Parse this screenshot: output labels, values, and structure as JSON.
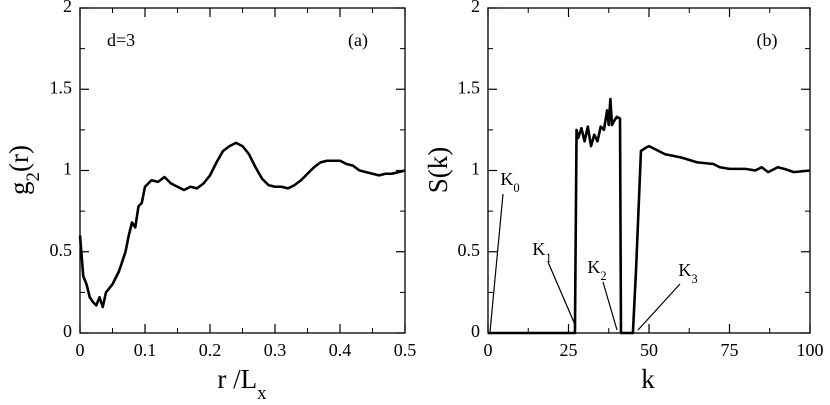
{
  "chart_data": [
    {
      "type": "line",
      "ylabel": {
        "text": "g",
        "sub": "2",
        "rest": "(r)"
      },
      "xlabel": {
        "text": "r /L",
        "sub": "x"
      },
      "annotations": [
        {
          "text": "d=3"
        },
        {
          "text": "(a)"
        }
      ],
      "xlim": [
        0,
        0.5
      ],
      "ylim": [
        0,
        2
      ],
      "xticks": [
        0,
        0.1,
        0.2,
        0.3,
        0.4,
        0.5
      ],
      "yticks": [
        0,
        0.5,
        1,
        1.5,
        2
      ],
      "color": "#000000",
      "x": [
        0,
        0.005,
        0.01,
        0.015,
        0.02,
        0.025,
        0.03,
        0.035,
        0.04,
        0.05,
        0.06,
        0.07,
        0.075,
        0.08,
        0.085,
        0.09,
        0.095,
        0.1,
        0.11,
        0.12,
        0.13,
        0.14,
        0.15,
        0.16,
        0.17,
        0.18,
        0.19,
        0.2,
        0.21,
        0.22,
        0.23,
        0.24,
        0.25,
        0.26,
        0.27,
        0.28,
        0.29,
        0.3,
        0.31,
        0.32,
        0.33,
        0.34,
        0.35,
        0.36,
        0.37,
        0.38,
        0.39,
        0.4,
        0.41,
        0.42,
        0.43,
        0.44,
        0.45,
        0.46,
        0.47,
        0.48,
        0.49,
        0.5
      ],
      "values": [
        0.6,
        0.35,
        0.3,
        0.22,
        0.19,
        0.17,
        0.22,
        0.16,
        0.25,
        0.3,
        0.38,
        0.5,
        0.6,
        0.68,
        0.65,
        0.78,
        0.8,
        0.9,
        0.94,
        0.93,
        0.96,
        0.92,
        0.9,
        0.88,
        0.9,
        0.89,
        0.92,
        0.97,
        1.05,
        1.12,
        1.15,
        1.17,
        1.15,
        1.1,
        1.02,
        0.95,
        0.91,
        0.9,
        0.9,
        0.89,
        0.91,
        0.94,
        0.98,
        1.02,
        1.05,
        1.06,
        1.06,
        1.06,
        1.04,
        1.03,
        1.0,
        0.99,
        0.98,
        0.97,
        0.98,
        0.98,
        0.99,
        1.0
      ]
    },
    {
      "type": "line",
      "ylabel": {
        "text": "S(k)"
      },
      "xlabel": {
        "text": "k"
      },
      "annotations": [
        {
          "text": "(b)"
        },
        {
          "text": "K",
          "sub": "0"
        },
        {
          "text": "K",
          "sub": "1"
        },
        {
          "text": "K",
          "sub": "2"
        },
        {
          "text": "K",
          "sub": "3"
        }
      ],
      "xlim": [
        0,
        100
      ],
      "ylim": [
        0,
        2
      ],
      "xticks": [
        0,
        25,
        50,
        75,
        100
      ],
      "yticks": [
        0,
        0.5,
        1,
        1.5,
        2
      ],
      "color": "#000000",
      "x": [
        0,
        27,
        27.5,
        28,
        29,
        30,
        31,
        32,
        33,
        34,
        35,
        36,
        37,
        37.5,
        38,
        38.5,
        39,
        40,
        41,
        41.3,
        45,
        46,
        47.5,
        49,
        50,
        52,
        55,
        60,
        65,
        70,
        72,
        75,
        80,
        83,
        85,
        87,
        90,
        92,
        95,
        100
      ],
      "values": [
        0,
        0,
        1.25,
        1.2,
        1.26,
        1.18,
        1.27,
        1.15,
        1.22,
        1.18,
        1.27,
        1.25,
        1.37,
        1.28,
        1.44,
        1.28,
        1.3,
        1.33,
        1.32,
        0,
        0,
        0.4,
        1.12,
        1.14,
        1.15,
        1.13,
        1.1,
        1.08,
        1.05,
        1.04,
        1.02,
        1.01,
        1.01,
        1.0,
        1.02,
        0.99,
        1.02,
        1.01,
        0.99,
        1.0
      ]
    }
  ]
}
